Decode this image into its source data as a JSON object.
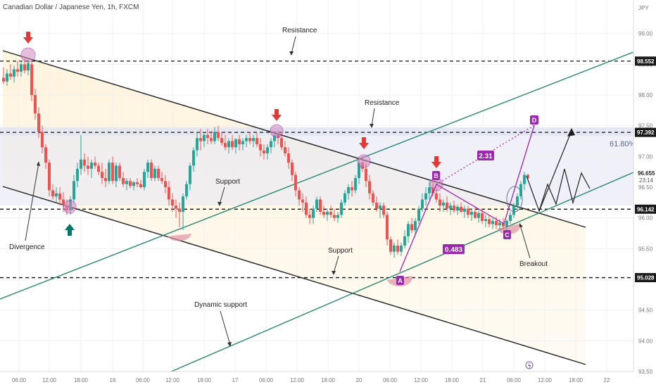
{
  "header": {
    "symbol_title": "Canadian Dollar / Japanese Yen, 1h, FXCM",
    "currency": "JPY"
  },
  "chart_data": {
    "type": "candlestick",
    "title": "Canadian Dollar / Japanese Yen, 1h, FXCM",
    "currency": "JPY",
    "y_range": [
      93.5,
      99.1
    ],
    "x_range": [
      0,
      900
    ],
    "y_ticks": [
      "99.00",
      "98.50",
      "98.00",
      "97.50",
      "97.00",
      "96.50",
      "96.00",
      "95.50",
      "95.00",
      "94.50",
      "94.00",
      "93.50"
    ],
    "x_ticks": [
      {
        "x": 27,
        "label": "06:00"
      },
      {
        "x": 70,
        "label": "12:00"
      },
      {
        "x": 115,
        "label": "18:00"
      },
      {
        "x": 160,
        "label": "16"
      },
      {
        "x": 203,
        "label": "06:00"
      },
      {
        "x": 245,
        "label": "12:00"
      },
      {
        "x": 290,
        "label": "18:00"
      },
      {
        "x": 334,
        "label": "17"
      },
      {
        "x": 378,
        "label": "06:00"
      },
      {
        "x": 422,
        "label": "12:00"
      },
      {
        "x": 466,
        "label": "18:00"
      },
      {
        "x": 510,
        "label": "20"
      },
      {
        "x": 554,
        "label": "06:00"
      },
      {
        "x": 598,
        "label": "12:00"
      },
      {
        "x": 642,
        "label": "18:00"
      },
      {
        "x": 686,
        "label": "21"
      },
      {
        "x": 730,
        "label": "06:00"
      },
      {
        "x": 774,
        "label": "12:00"
      },
      {
        "x": 818,
        "label": "18:00"
      },
      {
        "x": 862,
        "label": "22"
      }
    ],
    "price_labels": [
      {
        "price": 98.552,
        "text": "98.552"
      },
      {
        "price": 97.392,
        "text": "97.392"
      },
      {
        "price": 96.142,
        "text": "96.142"
      },
      {
        "price": 95.028,
        "text": "95.028"
      }
    ],
    "last_price": {
      "price": 96.655,
      "text": "96.655",
      "countdown": "23:14"
    },
    "fib_label": "61.80%",
    "horizontal_levels": [
      98.552,
      97.392,
      96.142,
      95.028
    ],
    "candles": [
      {
        "x": 5,
        "o": 98.28,
        "h": 98.45,
        "l": 98.18,
        "c": 98.22
      },
      {
        "x": 10,
        "o": 98.22,
        "h": 98.42,
        "l": 98.15,
        "c": 98.35
      },
      {
        "x": 15,
        "o": 98.35,
        "h": 98.5,
        "l": 98.25,
        "c": 98.3
      },
      {
        "x": 20,
        "o": 98.3,
        "h": 98.48,
        "l": 98.2,
        "c": 98.42
      },
      {
        "x": 25,
        "o": 98.42,
        "h": 98.55,
        "l": 98.3,
        "c": 98.38
      },
      {
        "x": 30,
        "o": 98.38,
        "h": 98.56,
        "l": 98.3,
        "c": 98.5
      },
      {
        "x": 35,
        "o": 98.5,
        "h": 98.6,
        "l": 98.35,
        "c": 98.4
      },
      {
        "x": 40,
        "o": 98.4,
        "h": 98.58,
        "l": 98.32,
        "c": 98.52
      },
      {
        "x": 45,
        "o": 98.5,
        "h": 98.55,
        "l": 97.9,
        "c": 98.0
      },
      {
        "x": 50,
        "o": 98.0,
        "h": 98.1,
        "l": 97.6,
        "c": 97.7
      },
      {
        "x": 55,
        "o": 97.7,
        "h": 97.8,
        "l": 97.3,
        "c": 97.4
      },
      {
        "x": 60,
        "o": 97.4,
        "h": 97.5,
        "l": 97.05,
        "c": 97.15
      },
      {
        "x": 65,
        "o": 97.15,
        "h": 97.2,
        "l": 96.8,
        "c": 96.9
      },
      {
        "x": 70,
        "o": 96.9,
        "h": 96.95,
        "l": 96.35,
        "c": 96.45
      },
      {
        "x": 75,
        "o": 96.45,
        "h": 96.55,
        "l": 96.3,
        "c": 96.35
      },
      {
        "x": 80,
        "o": 96.35,
        "h": 96.5,
        "l": 96.25,
        "c": 96.4
      },
      {
        "x": 85,
        "o": 96.4,
        "h": 96.5,
        "l": 96.2,
        "c": 96.3
      },
      {
        "x": 90,
        "o": 96.3,
        "h": 96.42,
        "l": 96.1,
        "c": 96.2
      },
      {
        "x": 95,
        "o": 96.2,
        "h": 96.3,
        "l": 96.05,
        "c": 96.12
      },
      {
        "x": 100,
        "o": 96.12,
        "h": 96.35,
        "l": 96.05,
        "c": 96.3
      },
      {
        "x": 105,
        "o": 96.3,
        "h": 96.7,
        "l": 96.25,
        "c": 96.6
      },
      {
        "x": 110,
        "o": 96.6,
        "h": 96.9,
        "l": 96.5,
        "c": 96.8
      },
      {
        "x": 115,
        "o": 96.8,
        "h": 97.35,
        "l": 96.7,
        "c": 96.95
      },
      {
        "x": 120,
        "o": 96.95,
        "h": 97.05,
        "l": 96.75,
        "c": 96.85
      },
      {
        "x": 125,
        "o": 96.85,
        "h": 97.0,
        "l": 96.7,
        "c": 96.8
      },
      {
        "x": 130,
        "o": 96.8,
        "h": 96.95,
        "l": 96.65,
        "c": 96.9
      },
      {
        "x": 135,
        "o": 96.9,
        "h": 97.0,
        "l": 96.8,
        "c": 96.85
      },
      {
        "x": 140,
        "o": 96.85,
        "h": 96.9,
        "l": 96.7,
        "c": 96.75
      },
      {
        "x": 145,
        "o": 96.75,
        "h": 96.9,
        "l": 96.55,
        "c": 96.65
      },
      {
        "x": 150,
        "o": 96.65,
        "h": 96.8,
        "l": 96.5,
        "c": 96.6
      },
      {
        "x": 155,
        "o": 96.6,
        "h": 96.95,
        "l": 96.55,
        "c": 96.9
      },
      {
        "x": 160,
        "o": 96.9,
        "h": 97.0,
        "l": 96.55,
        "c": 96.6
      },
      {
        "x": 165,
        "o": 96.6,
        "h": 96.9,
        "l": 96.5,
        "c": 96.85
      },
      {
        "x": 170,
        "o": 96.85,
        "h": 96.9,
        "l": 96.6,
        "c": 96.65
      },
      {
        "x": 175,
        "o": 96.65,
        "h": 96.75,
        "l": 96.5,
        "c": 96.55
      },
      {
        "x": 180,
        "o": 96.55,
        "h": 96.65,
        "l": 96.45,
        "c": 96.6
      },
      {
        "x": 185,
        "o": 96.6,
        "h": 96.65,
        "l": 96.48,
        "c": 96.52
      },
      {
        "x": 190,
        "o": 96.52,
        "h": 96.6,
        "l": 96.45,
        "c": 96.58
      },
      {
        "x": 195,
        "o": 96.58,
        "h": 96.65,
        "l": 96.5,
        "c": 96.55
      },
      {
        "x": 200,
        "o": 96.55,
        "h": 96.62,
        "l": 96.48,
        "c": 96.5
      },
      {
        "x": 205,
        "o": 96.5,
        "h": 96.8,
        "l": 96.45,
        "c": 96.75
      },
      {
        "x": 210,
        "o": 96.75,
        "h": 96.95,
        "l": 96.65,
        "c": 96.9
      },
      {
        "x": 215,
        "o": 96.9,
        "h": 96.95,
        "l": 96.6,
        "c": 96.65
      },
      {
        "x": 220,
        "o": 96.65,
        "h": 96.85,
        "l": 96.6,
        "c": 96.8
      },
      {
        "x": 225,
        "o": 96.8,
        "h": 96.85,
        "l": 96.6,
        "c": 96.65
      },
      {
        "x": 230,
        "o": 96.65,
        "h": 96.75,
        "l": 96.55,
        "c": 96.6
      },
      {
        "x": 235,
        "o": 96.6,
        "h": 96.7,
        "l": 96.4,
        "c": 96.5
      },
      {
        "x": 240,
        "o": 96.5,
        "h": 96.6,
        "l": 96.2,
        "c": 96.3
      },
      {
        "x": 245,
        "o": 96.3,
        "h": 96.4,
        "l": 96.1,
        "c": 96.2
      },
      {
        "x": 250,
        "o": 96.2,
        "h": 96.3,
        "l": 96.0,
        "c": 96.15
      },
      {
        "x": 255,
        "o": 96.15,
        "h": 96.25,
        "l": 95.85,
        "c": 96.1
      },
      {
        "x": 260,
        "o": 96.1,
        "h": 96.4,
        "l": 95.8,
        "c": 96.35
      },
      {
        "x": 265,
        "o": 96.35,
        "h": 96.6,
        "l": 96.3,
        "c": 96.55
      },
      {
        "x": 270,
        "o": 96.55,
        "h": 96.9,
        "l": 96.45,
        "c": 96.85
      },
      {
        "x": 275,
        "o": 96.85,
        "h": 97.15,
        "l": 96.75,
        "c": 97.1
      },
      {
        "x": 280,
        "o": 97.1,
        "h": 97.4,
        "l": 97.0,
        "c": 97.3
      },
      {
        "x": 285,
        "o": 97.3,
        "h": 97.45,
        "l": 97.1,
        "c": 97.25
      },
      {
        "x": 290,
        "o": 97.25,
        "h": 97.4,
        "l": 97.15,
        "c": 97.35
      },
      {
        "x": 295,
        "o": 97.35,
        "h": 97.45,
        "l": 97.2,
        "c": 97.3
      },
      {
        "x": 300,
        "o": 97.3,
        "h": 97.42,
        "l": 97.2,
        "c": 97.25
      },
      {
        "x": 305,
        "o": 97.25,
        "h": 97.48,
        "l": 97.2,
        "c": 97.4
      },
      {
        "x": 310,
        "o": 97.4,
        "h": 97.5,
        "l": 97.25,
        "c": 97.3
      },
      {
        "x": 315,
        "o": 97.3,
        "h": 97.4,
        "l": 97.18,
        "c": 97.22
      },
      {
        "x": 320,
        "o": 97.22,
        "h": 97.35,
        "l": 97.1,
        "c": 97.15
      },
      {
        "x": 325,
        "o": 97.15,
        "h": 97.3,
        "l": 97.05,
        "c": 97.25
      },
      {
        "x": 330,
        "o": 97.25,
        "h": 97.35,
        "l": 97.1,
        "c": 97.15
      },
      {
        "x": 335,
        "o": 97.15,
        "h": 97.3,
        "l": 97.05,
        "c": 97.28
      },
      {
        "x": 340,
        "o": 97.28,
        "h": 97.35,
        "l": 97.1,
        "c": 97.2
      },
      {
        "x": 345,
        "o": 97.2,
        "h": 97.3,
        "l": 97.1,
        "c": 97.25
      },
      {
        "x": 350,
        "o": 97.25,
        "h": 97.35,
        "l": 97.15,
        "c": 97.3
      },
      {
        "x": 355,
        "o": 97.3,
        "h": 97.4,
        "l": 97.2,
        "c": 97.25
      },
      {
        "x": 360,
        "o": 97.25,
        "h": 97.35,
        "l": 97.15,
        "c": 97.3
      },
      {
        "x": 365,
        "o": 97.3,
        "h": 97.38,
        "l": 97.15,
        "c": 97.2
      },
      {
        "x": 370,
        "o": 97.2,
        "h": 97.3,
        "l": 97.0,
        "c": 97.1
      },
      {
        "x": 375,
        "o": 97.1,
        "h": 97.2,
        "l": 96.95,
        "c": 97.05
      },
      {
        "x": 380,
        "o": 97.05,
        "h": 97.2,
        "l": 96.95,
        "c": 97.15
      },
      {
        "x": 385,
        "o": 97.15,
        "h": 97.3,
        "l": 97.05,
        "c": 97.25
      },
      {
        "x": 390,
        "o": 97.25,
        "h": 97.4,
        "l": 97.15,
        "c": 97.35
      },
      {
        "x": 395,
        "o": 97.35,
        "h": 97.42,
        "l": 97.2,
        "c": 97.3
      },
      {
        "x": 400,
        "o": 97.3,
        "h": 97.38,
        "l": 97.1,
        "c": 97.15
      },
      {
        "x": 405,
        "o": 97.15,
        "h": 97.25,
        "l": 97.0,
        "c": 97.05
      },
      {
        "x": 410,
        "o": 97.05,
        "h": 97.15,
        "l": 96.8,
        "c": 96.9
      },
      {
        "x": 415,
        "o": 96.9,
        "h": 96.95,
        "l": 96.6,
        "c": 96.7
      },
      {
        "x": 420,
        "o": 96.7,
        "h": 96.75,
        "l": 96.35,
        "c": 96.45
      },
      {
        "x": 425,
        "o": 96.45,
        "h": 96.5,
        "l": 96.2,
        "c": 96.3
      },
      {
        "x": 430,
        "o": 96.3,
        "h": 96.4,
        "l": 96.1,
        "c": 96.25
      },
      {
        "x": 435,
        "o": 96.25,
        "h": 96.35,
        "l": 96.0,
        "c": 96.05
      },
      {
        "x": 440,
        "o": 96.05,
        "h": 96.15,
        "l": 95.9,
        "c": 96.0
      },
      {
        "x": 445,
        "o": 96.0,
        "h": 96.2,
        "l": 95.9,
        "c": 96.15
      },
      {
        "x": 450,
        "o": 96.15,
        "h": 96.35,
        "l": 96.1,
        "c": 96.3
      },
      {
        "x": 455,
        "o": 96.3,
        "h": 96.35,
        "l": 96.05,
        "c": 96.1
      },
      {
        "x": 460,
        "o": 96.1,
        "h": 96.2,
        "l": 96.0,
        "c": 96.05
      },
      {
        "x": 465,
        "o": 96.05,
        "h": 96.15,
        "l": 95.95,
        "c": 96.1
      },
      {
        "x": 470,
        "o": 96.1,
        "h": 96.2,
        "l": 96.0,
        "c": 96.05
      },
      {
        "x": 475,
        "o": 96.05,
        "h": 96.15,
        "l": 95.95,
        "c": 96.0
      },
      {
        "x": 480,
        "o": 96.0,
        "h": 96.1,
        "l": 95.92,
        "c": 96.05
      },
      {
        "x": 485,
        "o": 96.05,
        "h": 96.3,
        "l": 96.0,
        "c": 96.25
      },
      {
        "x": 490,
        "o": 96.25,
        "h": 96.45,
        "l": 96.2,
        "c": 96.4
      },
      {
        "x": 495,
        "o": 96.4,
        "h": 96.55,
        "l": 96.3,
        "c": 96.5
      },
      {
        "x": 500,
        "o": 96.5,
        "h": 96.6,
        "l": 96.35,
        "c": 96.45
      },
      {
        "x": 505,
        "o": 96.45,
        "h": 96.7,
        "l": 96.4,
        "c": 96.65
      },
      {
        "x": 510,
        "o": 96.65,
        "h": 96.95,
        "l": 96.55,
        "c": 96.9
      },
      {
        "x": 515,
        "o": 96.9,
        "h": 97.0,
        "l": 96.75,
        "c": 96.8
      },
      {
        "x": 520,
        "o": 96.8,
        "h": 96.9,
        "l": 96.5,
        "c": 96.6
      },
      {
        "x": 525,
        "o": 96.6,
        "h": 96.7,
        "l": 96.3,
        "c": 96.4
      },
      {
        "x": 530,
        "o": 96.4,
        "h": 96.45,
        "l": 96.2,
        "c": 96.25
      },
      {
        "x": 535,
        "o": 96.25,
        "h": 96.35,
        "l": 96.1,
        "c": 96.15
      },
      {
        "x": 540,
        "o": 96.15,
        "h": 96.25,
        "l": 96.0,
        "c": 96.2
      },
      {
        "x": 545,
        "o": 96.2,
        "h": 96.25,
        "l": 96.0,
        "c": 96.05
      },
      {
        "x": 550,
        "o": 96.05,
        "h": 96.1,
        "l": 95.55,
        "c": 95.65
      },
      {
        "x": 555,
        "o": 95.65,
        "h": 95.7,
        "l": 95.4,
        "c": 95.45
      },
      {
        "x": 560,
        "o": 95.45,
        "h": 95.6,
        "l": 95.35,
        "c": 95.55
      },
      {
        "x": 565,
        "o": 95.55,
        "h": 95.65,
        "l": 95.4,
        "c": 95.45
      },
      {
        "x": 570,
        "o": 95.45,
        "h": 95.6,
        "l": 95.38,
        "c": 95.55
      },
      {
        "x": 575,
        "o": 95.55,
        "h": 95.8,
        "l": 95.5,
        "c": 95.7
      },
      {
        "x": 580,
        "o": 95.7,
        "h": 95.95,
        "l": 95.6,
        "c": 95.9
      },
      {
        "x": 585,
        "o": 95.9,
        "h": 96.0,
        "l": 95.75,
        "c": 95.8
      },
      {
        "x": 590,
        "o": 95.8,
        "h": 96.0,
        "l": 95.7,
        "c": 95.95
      },
      {
        "x": 595,
        "o": 95.95,
        "h": 96.2,
        "l": 95.9,
        "c": 96.15
      },
      {
        "x": 600,
        "o": 96.15,
        "h": 96.4,
        "l": 96.1,
        "c": 96.3
      },
      {
        "x": 605,
        "o": 96.3,
        "h": 96.5,
        "l": 96.2,
        "c": 96.4
      },
      {
        "x": 610,
        "o": 96.4,
        "h": 96.6,
        "l": 96.3,
        "c": 96.5
      },
      {
        "x": 615,
        "o": 96.5,
        "h": 96.62,
        "l": 96.35,
        "c": 96.4
      },
      {
        "x": 620,
        "o": 96.4,
        "h": 96.5,
        "l": 96.25,
        "c": 96.3
      },
      {
        "x": 625,
        "o": 96.3,
        "h": 96.4,
        "l": 96.1,
        "c": 96.2
      },
      {
        "x": 630,
        "o": 96.2,
        "h": 96.3,
        "l": 96.1,
        "c": 96.25
      },
      {
        "x": 635,
        "o": 96.25,
        "h": 96.35,
        "l": 96.1,
        "c": 96.15
      },
      {
        "x": 640,
        "o": 96.15,
        "h": 96.25,
        "l": 96.05,
        "c": 96.2
      },
      {
        "x": 645,
        "o": 96.2,
        "h": 96.28,
        "l": 96.08,
        "c": 96.12
      },
      {
        "x": 650,
        "o": 96.12,
        "h": 96.22,
        "l": 96.05,
        "c": 96.18
      },
      {
        "x": 655,
        "o": 96.18,
        "h": 96.25,
        "l": 96.08,
        "c": 96.1
      },
      {
        "x": 660,
        "o": 96.1,
        "h": 96.2,
        "l": 96.0,
        "c": 96.15
      },
      {
        "x": 665,
        "o": 96.15,
        "h": 96.2,
        "l": 96.0,
        "c": 96.05
      },
      {
        "x": 670,
        "o": 96.05,
        "h": 96.15,
        "l": 95.95,
        "c": 96.1
      },
      {
        "x": 675,
        "o": 96.1,
        "h": 96.18,
        "l": 95.98,
        "c": 96.0
      },
      {
        "x": 680,
        "o": 96.0,
        "h": 96.12,
        "l": 95.92,
        "c": 96.08
      },
      {
        "x": 685,
        "o": 96.08,
        "h": 96.15,
        "l": 95.9,
        "c": 95.95
      },
      {
        "x": 690,
        "o": 95.95,
        "h": 96.05,
        "l": 95.85,
        "c": 95.98
      },
      {
        "x": 695,
        "o": 95.98,
        "h": 96.05,
        "l": 95.85,
        "c": 95.9
      },
      {
        "x": 700,
        "o": 95.9,
        "h": 96.0,
        "l": 95.82,
        "c": 95.95
      },
      {
        "x": 705,
        "o": 95.95,
        "h": 96.02,
        "l": 95.82,
        "c": 95.88
      },
      {
        "x": 710,
        "o": 95.88,
        "h": 95.98,
        "l": 95.8,
        "c": 95.92
      },
      {
        "x": 715,
        "o": 95.92,
        "h": 96.0,
        "l": 95.82,
        "c": 95.86
      },
      {
        "x": 720,
        "o": 95.86,
        "h": 95.98,
        "l": 95.8,
        "c": 95.95
      },
      {
        "x": 725,
        "o": 95.95,
        "h": 96.1,
        "l": 95.9,
        "c": 96.05
      },
      {
        "x": 730,
        "o": 96.05,
        "h": 96.25,
        "l": 96.0,
        "c": 96.2
      },
      {
        "x": 735,
        "o": 96.2,
        "h": 96.4,
        "l": 96.1,
        "c": 96.35
      },
      {
        "x": 740,
        "o": 96.35,
        "h": 96.6,
        "l": 96.3,
        "c": 96.55
      },
      {
        "x": 745,
        "o": 96.55,
        "h": 96.75,
        "l": 96.45,
        "c": 96.7
      },
      {
        "x": 750,
        "o": 96.7,
        "h": 96.72,
        "l": 96.6,
        "c": 96.65
      }
    ]
  },
  "annotations": {
    "resistance_top": "Resistance",
    "resistance_mid": "Resistance",
    "support_left": "Support",
    "support_mid": "Support",
    "dynamic_support": "Dynamic support",
    "divergence": "Divergence",
    "breakout": "Breakout",
    "point_a": "A",
    "point_b": "B",
    "point_c": "C",
    "point_d": "D",
    "measure_ab": "0.483",
    "measure_bd": "2.31"
  },
  "colors": {
    "up": "#26a69a",
    "down": "#ef5350",
    "channel_line": "#1f1f1f",
    "trend_line": "#26886e",
    "pattern": "#9c27b0",
    "marker_red": "#e53935",
    "marker_teal": "#00796b"
  }
}
